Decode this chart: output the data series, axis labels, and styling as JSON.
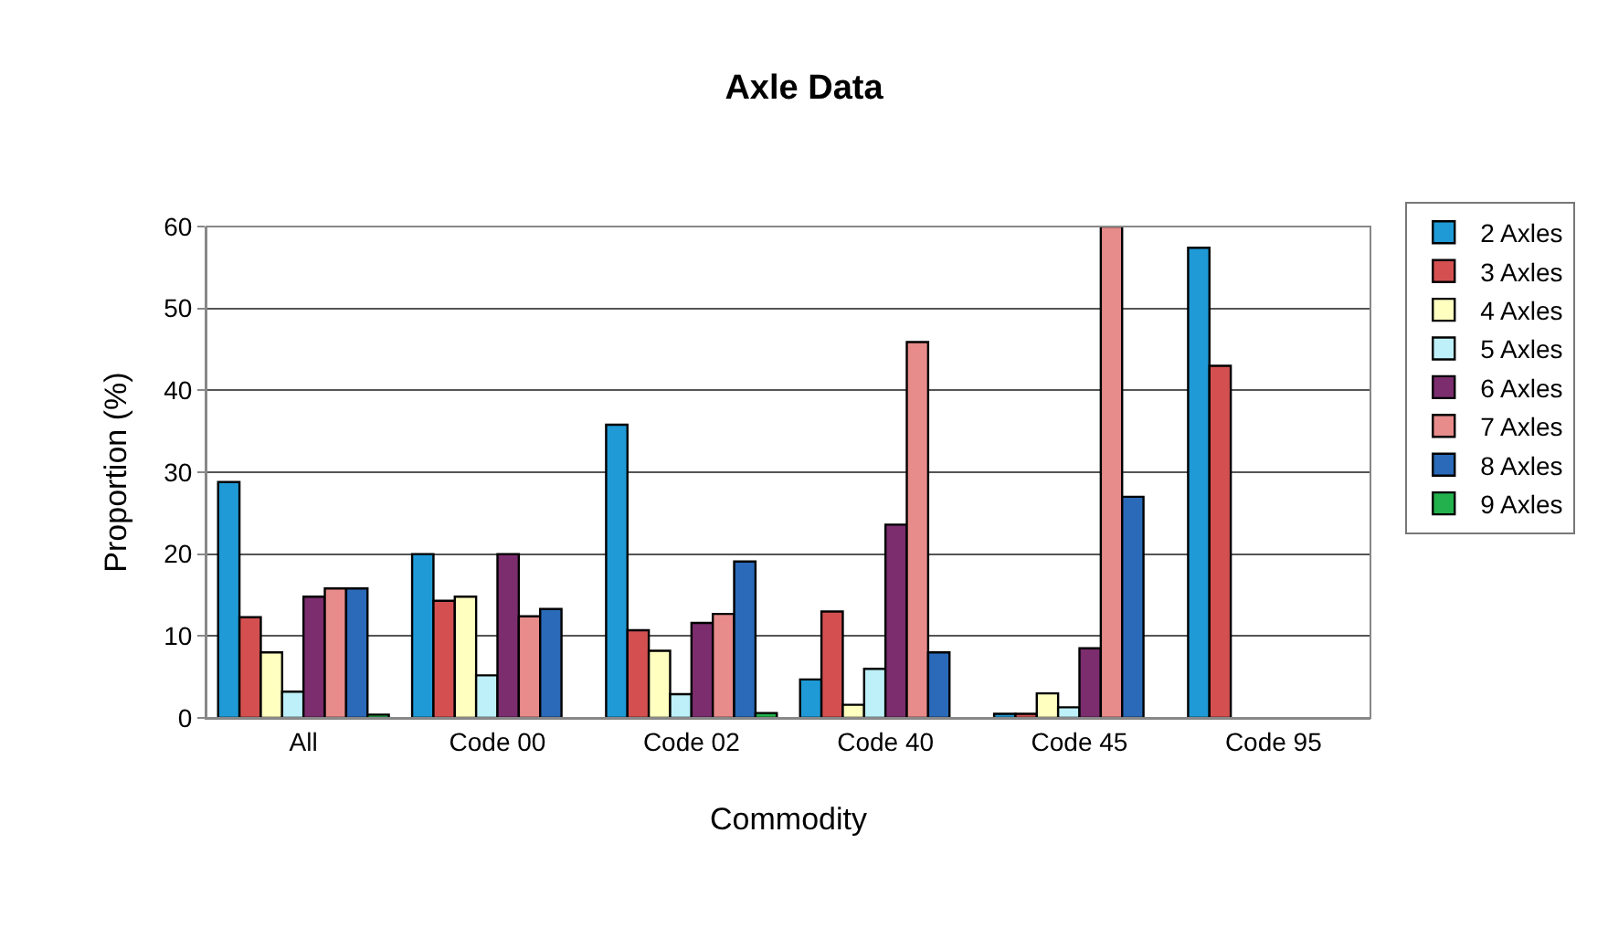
{
  "chart_data": {
    "type": "bar",
    "title": "Axle Data",
    "xlabel": "Commodity",
    "ylabel": "Proportion (%)",
    "categories": [
      "All",
      "Code 00",
      "Code 02",
      "Code 40",
      "Code 45",
      "Code 95"
    ],
    "series": [
      {
        "name": "2 Axles",
        "color": "#1f9ad6",
        "values": [
          28.8,
          20,
          35.8,
          4.7,
          0.5,
          57.4
        ]
      },
      {
        "name": "3 Axles",
        "color": "#d45050",
        "values": [
          12.3,
          14.3,
          10.7,
          13,
          0.5,
          43
        ]
      },
      {
        "name": "4 Axles",
        "color": "#ffffc0",
        "values": [
          8,
          14.8,
          8.2,
          1.6,
          3,
          null
        ]
      },
      {
        "name": "5 Axles",
        "color": "#bdf0f8",
        "values": [
          3.2,
          5.2,
          2.9,
          6,
          1.3,
          null
        ]
      },
      {
        "name": "6 Axles",
        "color": "#7b2d6e",
        "values": [
          14.8,
          20,
          11.6,
          23.6,
          8.5,
          null
        ]
      },
      {
        "name": "7 Axles",
        "color": "#e88b8b",
        "values": [
          15.8,
          12.4,
          12.7,
          45.9,
          60,
          null
        ]
      },
      {
        "name": "8 Axles",
        "color": "#2a6ab8",
        "values": [
          15.8,
          13.3,
          19.1,
          8,
          27,
          null
        ]
      },
      {
        "name": "9 Axles",
        "color": "#22b14c",
        "values": [
          0.4,
          null,
          0.6,
          null,
          null,
          null
        ]
      }
    ],
    "ylim": [
      0,
      60
    ],
    "yticks": [
      0,
      10,
      20,
      30,
      40,
      50,
      60
    ],
    "grid": "y",
    "legend": "right"
  }
}
